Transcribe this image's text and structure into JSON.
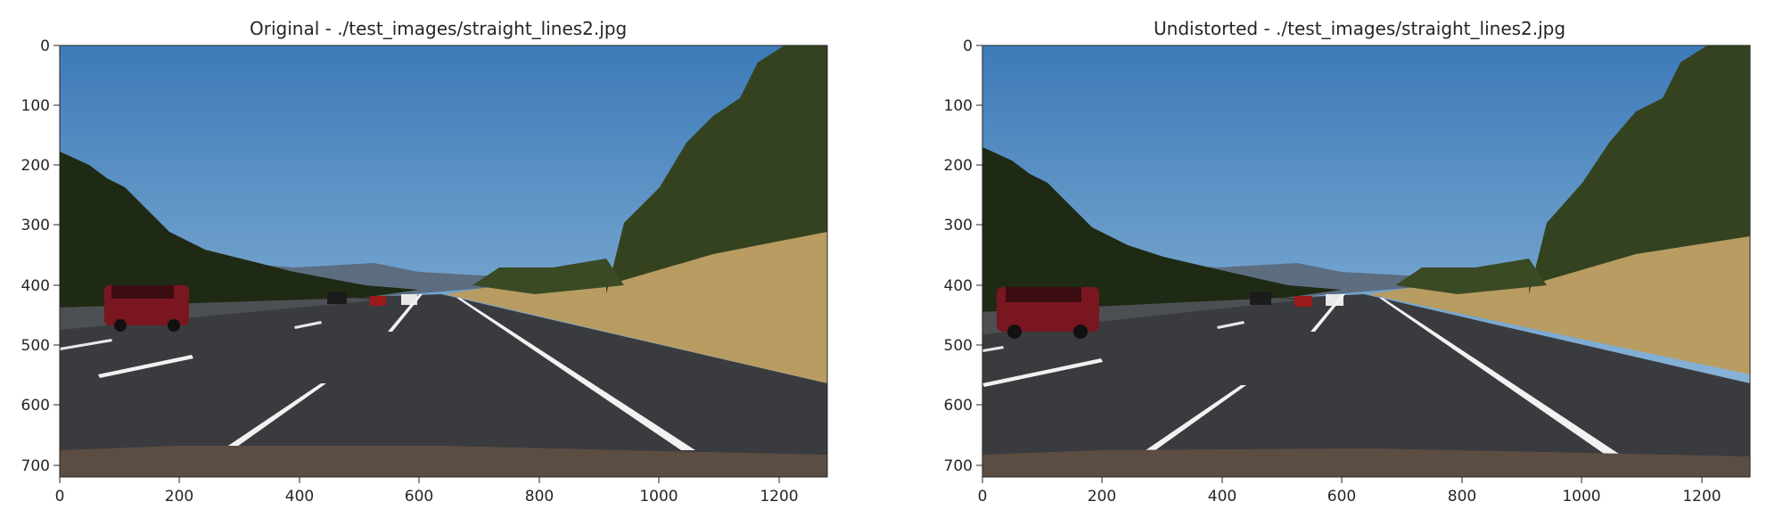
{
  "panels": [
    {
      "title": "Original - ./test_images/straight_lines2.jpg",
      "x_ticks": [
        "0",
        "200",
        "400",
        "600",
        "800",
        "1000",
        "1200"
      ],
      "y_ticks": [
        "0",
        "100",
        "200",
        "300",
        "400",
        "500",
        "600",
        "700"
      ]
    },
    {
      "title": "Undistorted - ./test_images/straight_lines2.jpg",
      "x_ticks": [
        "0",
        "200",
        "400",
        "600",
        "800",
        "1000",
        "1200"
      ],
      "y_ticks": [
        "0",
        "100",
        "200",
        "300",
        "400",
        "500",
        "600",
        "700"
      ]
    }
  ],
  "colors": {
    "sky_top": "#3d7ab8",
    "sky_bottom": "#9cc3df",
    "road": "#3a3b3e",
    "grass": "#b99c62",
    "trees": "#2d3b1c",
    "lane_marking": "#f2f2f2",
    "car": "#7a1620",
    "hood": "#5c4d43"
  }
}
